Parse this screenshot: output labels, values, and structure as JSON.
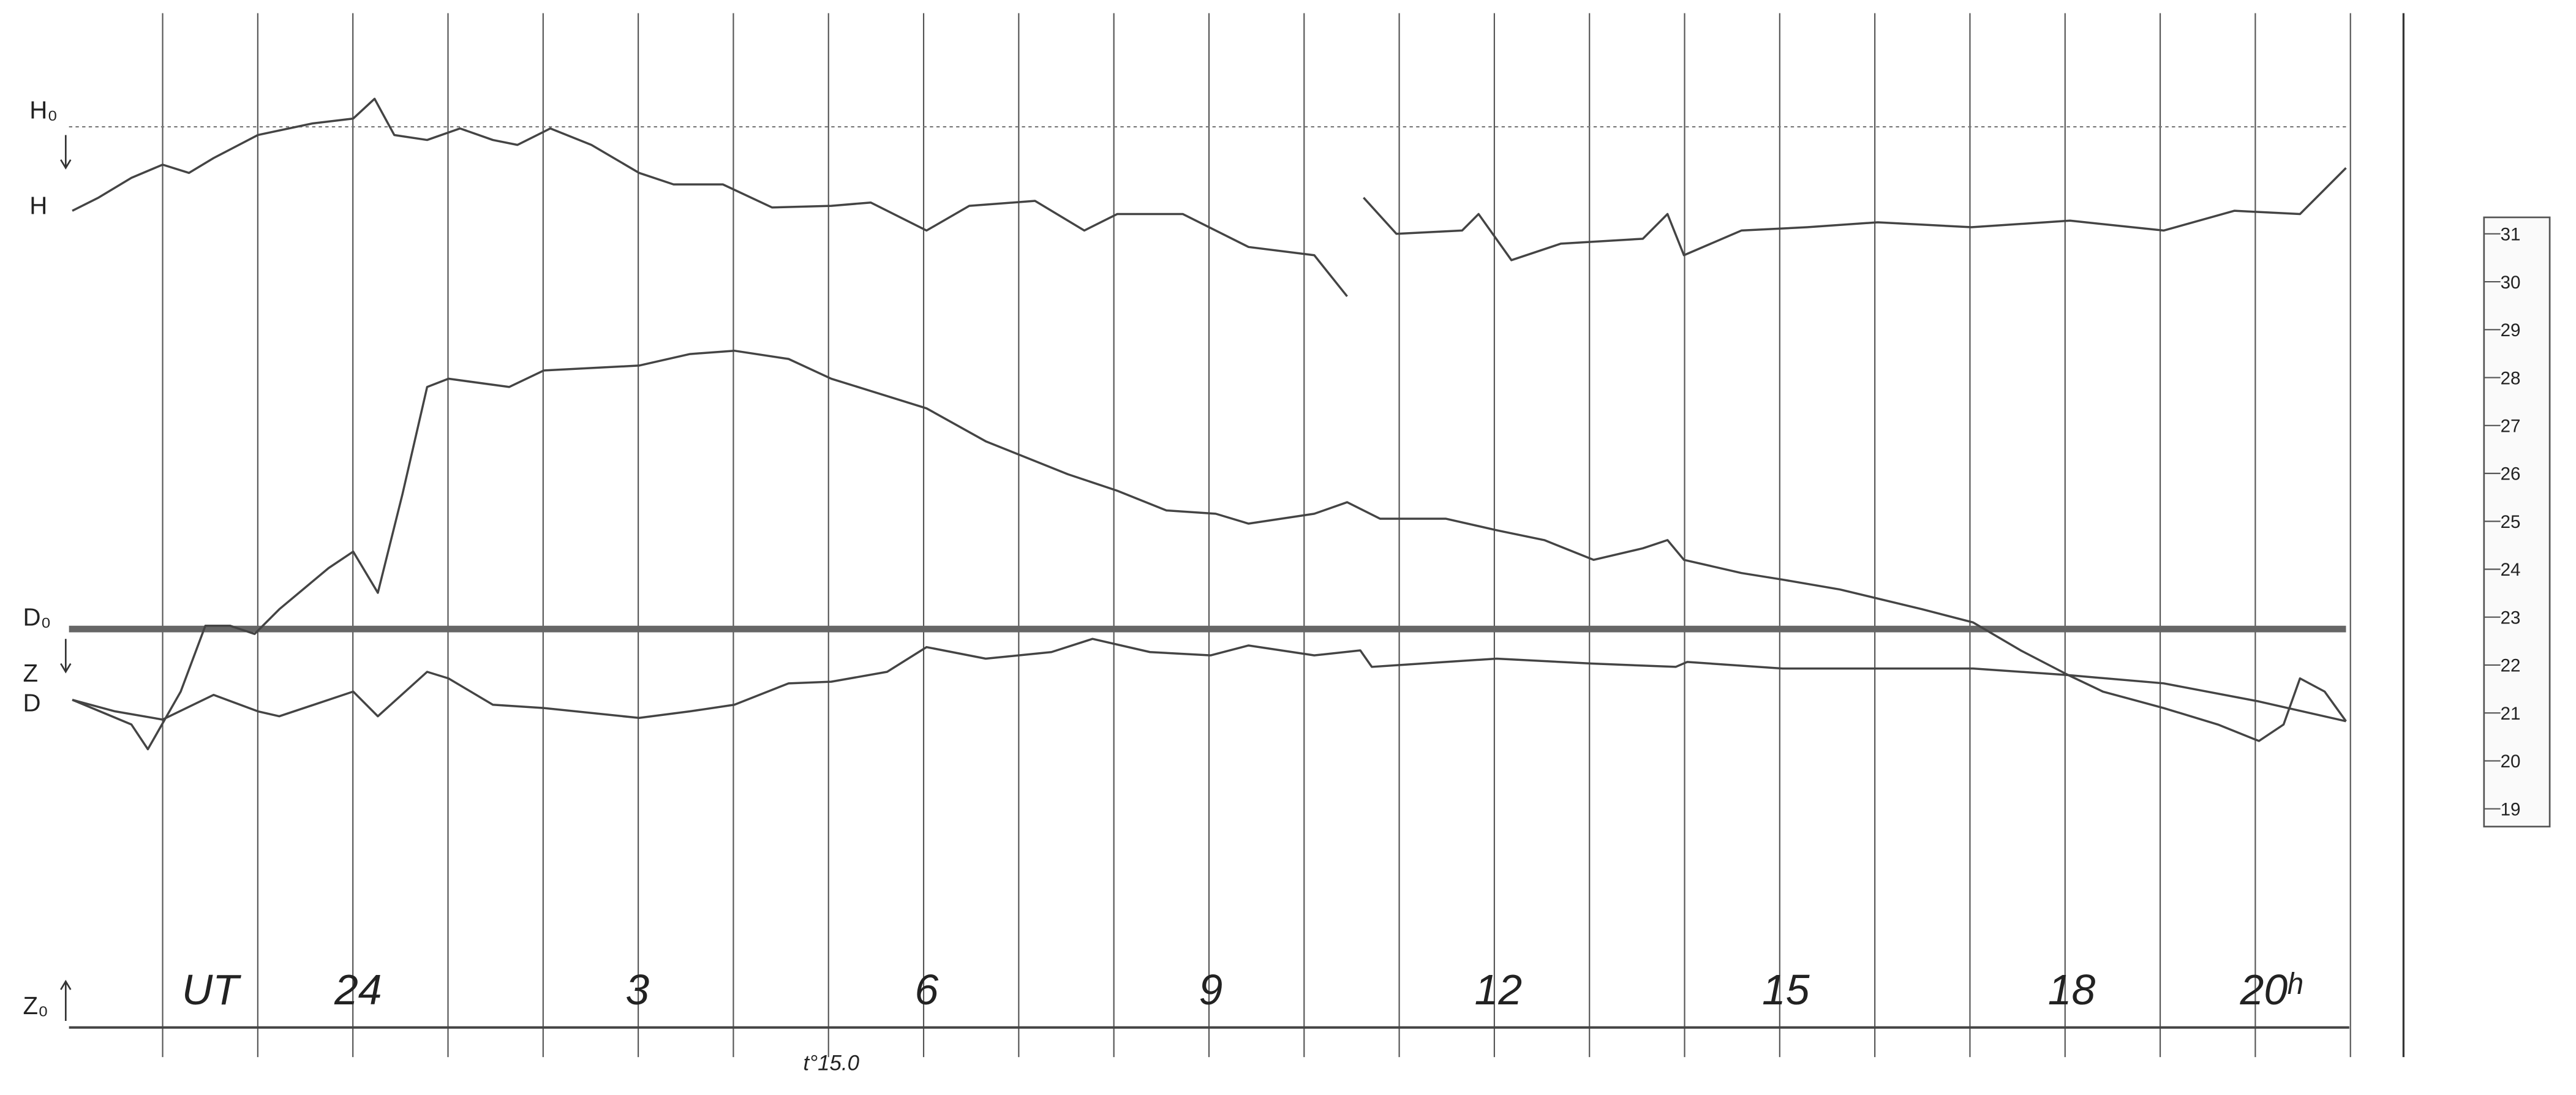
{
  "left_labels": [
    "H₀",
    "H",
    "D₀",
    "Z",
    "D",
    "Z₀"
  ],
  "time_axis": [
    "UT",
    "24",
    "3",
    "6",
    "9",
    "12",
    "15",
    "18",
    "20ʰ"
  ],
  "temperature_note": "t°15.0",
  "scale": [
    "31",
    "30",
    "29",
    "28",
    "27",
    "26",
    "25",
    "24",
    "23",
    "22",
    "21",
    "20",
    "19"
  ]
}
